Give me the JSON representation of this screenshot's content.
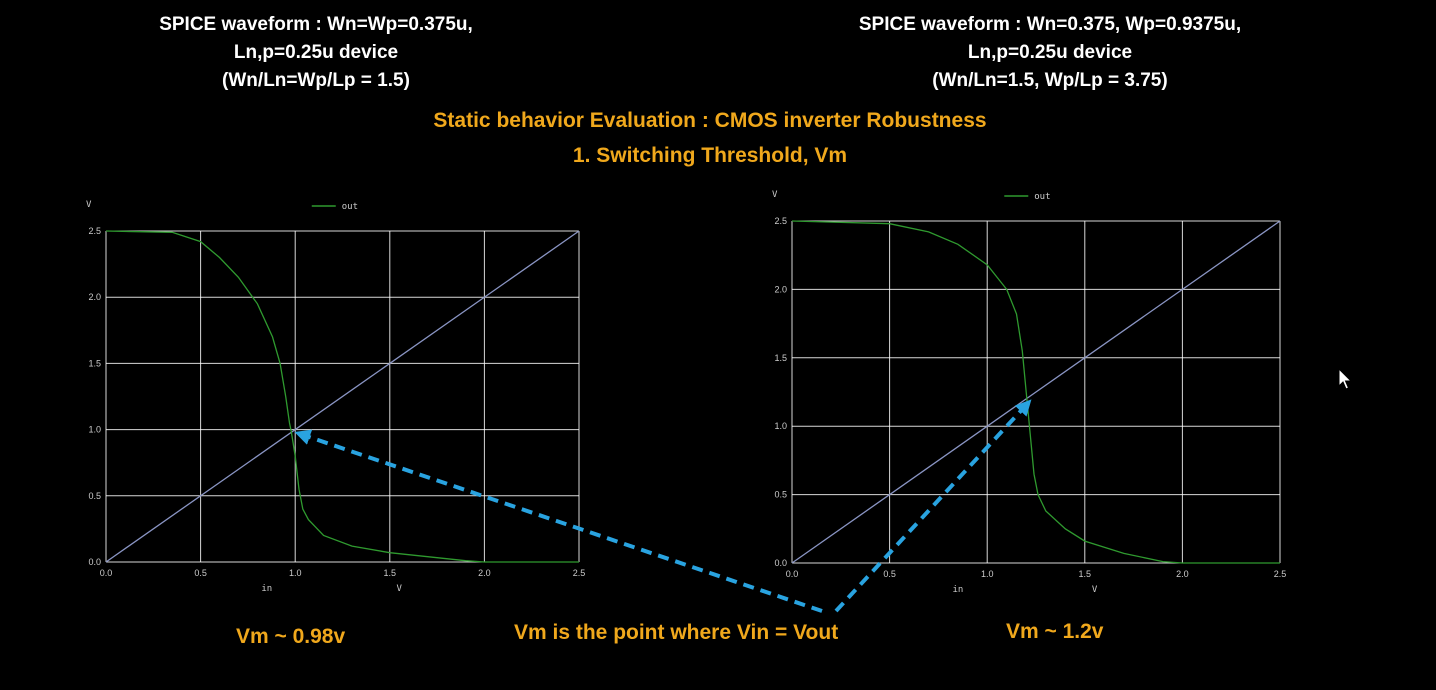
{
  "captions": {
    "left": [
      "SPICE waveform : Wn=Wp=0.375u,",
      "Ln,p=0.25u device",
      "(Wn/Ln=Wp/Lp = 1.5)"
    ],
    "right": [
      "SPICE waveform : Wn=0.375, Wp=0.9375u,",
      "Ln,p=0.25u device",
      "(Wn/Ln=1.5, Wp/Lp = 3.75)"
    ]
  },
  "title": {
    "line1": "Static behavior Evaluation : CMOS inverter Robustness",
    "line2": "1. Switching Threshold, Vm"
  },
  "notes": {
    "vm_left": "Vm ~ 0.98v",
    "center": "Vm is the point where Vin = Vout",
    "vm_right": "Vm ~ 1.2v"
  },
  "colors": {
    "background": "#000000",
    "grid": "#ffffff",
    "curve": "#2f9a2f",
    "diagonal": "#8a95c4",
    "arrow": "#29a3e0",
    "accent_text": "#f0a81c",
    "tick_text": "#cccccc"
  },
  "chart_data": [
    {
      "type": "line",
      "ylabel": "V",
      "xlabel": "in",
      "xunit": "V",
      "legend": "out",
      "xlim": [
        0,
        2.5
      ],
      "ylim": [
        0,
        2.5
      ],
      "x_ticks": [
        "0.0",
        "0.5",
        "1.0",
        "1.5",
        "2.0",
        "2.5"
      ],
      "y_ticks": [
        "0.0",
        "0.5",
        "1.0",
        "1.5",
        "2.0",
        "2.5"
      ],
      "grid": true,
      "series": [
        {
          "name": "out",
          "x": [
            0,
            0.35,
            0.5,
            0.6,
            0.7,
            0.8,
            0.88,
            0.92,
            0.95,
            0.97,
            0.98,
            1.0,
            1.02,
            1.04,
            1.07,
            1.15,
            1.3,
            1.5,
            1.7,
            1.9,
            2.0,
            2.5
          ],
          "y": [
            2.5,
            2.49,
            2.42,
            2.3,
            2.15,
            1.95,
            1.7,
            1.5,
            1.25,
            1.05,
            0.98,
            0.8,
            0.55,
            0.4,
            0.32,
            0.2,
            0.12,
            0.07,
            0.04,
            0.01,
            0,
            0
          ]
        },
        {
          "x": [
            0,
            2.5
          ],
          "y": [
            0,
            2.5
          ]
        }
      ],
      "arrow_target": [
        1.02,
        0.97
      ]
    },
    {
      "type": "line",
      "ylabel": "V",
      "xlabel": "in",
      "xunit": "V",
      "legend": "out",
      "xlim": [
        0,
        2.5
      ],
      "ylim": [
        0,
        2.5
      ],
      "x_ticks": [
        "0.0",
        "0.5",
        "1.0",
        "1.5",
        "2.0",
        "2.5"
      ],
      "y_ticks": [
        "0.0",
        "0.5",
        "1.0",
        "1.5",
        "2.0",
        "2.5"
      ],
      "grid": true,
      "series": [
        {
          "name": "out",
          "x": [
            0,
            0.5,
            0.7,
            0.85,
            1.0,
            1.1,
            1.15,
            1.18,
            1.2,
            1.22,
            1.24,
            1.26,
            1.3,
            1.4,
            1.5,
            1.7,
            1.9,
            2.0,
            2.5
          ],
          "y": [
            2.5,
            2.48,
            2.42,
            2.33,
            2.18,
            2.0,
            1.82,
            1.55,
            1.25,
            0.95,
            0.65,
            0.5,
            0.38,
            0.25,
            0.16,
            0.07,
            0.01,
            0,
            0
          ]
        },
        {
          "x": [
            0,
            2.5
          ],
          "y": [
            0,
            2.5
          ]
        }
      ],
      "arrow_target": [
        1.21,
        1.17
      ]
    }
  ]
}
